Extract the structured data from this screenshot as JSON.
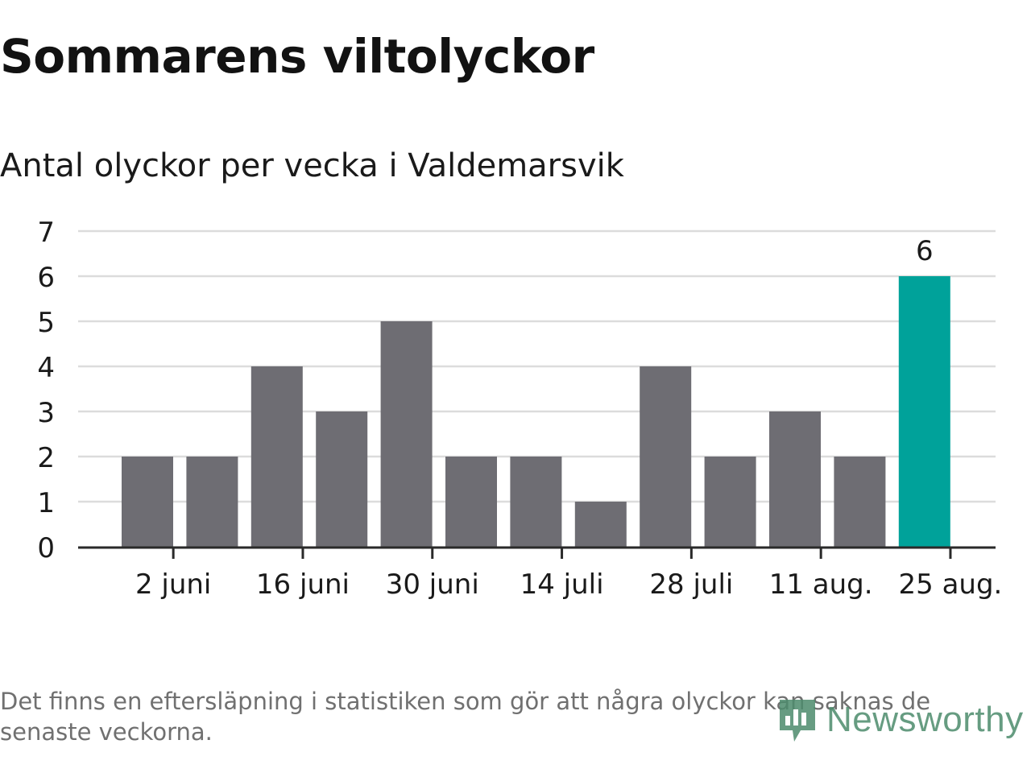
{
  "title": "Sommarens viltolyckor",
  "subtitle": "Antal olyckor per vecka i Valdemarsvik",
  "note": "Det finns en eftersläpning i statistiken som gör att några olyckor kan saknas de senaste veckorna.",
  "logo_text": "Newsworthy",
  "colors": {
    "bar": "#6e6d73",
    "highlight": "#00a29a",
    "grid": "#dcdcdc",
    "axis": "#2a2a2a",
    "logo": "#4c8b6c"
  },
  "chart_data": {
    "type": "bar",
    "categories": [
      "",
      "",
      "",
      "",
      "",
      "",
      "",
      "",
      "",
      "",
      "",
      "",
      ""
    ],
    "values": [
      2,
      2,
      4,
      3,
      5,
      2,
      2,
      1,
      4,
      2,
      3,
      2,
      6
    ],
    "highlight_index": 12,
    "data_labels": [
      {
        "index": 12,
        "text": "6"
      }
    ],
    "xticks": [
      {
        "index": 0.4,
        "label": "2 juni"
      },
      {
        "index": 2.4,
        "label": "16 juni"
      },
      {
        "index": 4.4,
        "label": "30 juni"
      },
      {
        "index": 6.4,
        "label": "14 juli"
      },
      {
        "index": 8.4,
        "label": "28 juli"
      },
      {
        "index": 10.4,
        "label": "11 aug."
      },
      {
        "index": 12.4,
        "label": "25 aug."
      }
    ],
    "yticks": [
      0,
      1,
      2,
      3,
      4,
      5,
      6,
      7
    ],
    "ylim": [
      0,
      7
    ],
    "grid": true,
    "legend": "none"
  }
}
